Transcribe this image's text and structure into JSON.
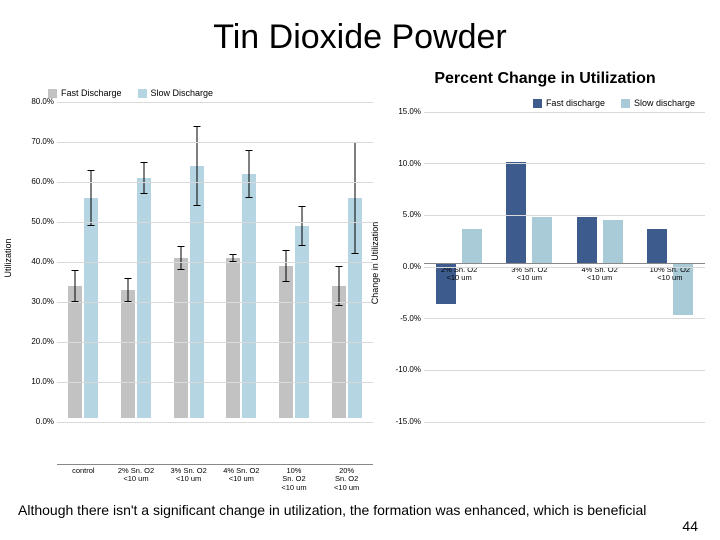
{
  "title": "Tin Dioxide Powder",
  "caption": "Although there isn't a significant change in utilization, the formation was enhanced, which is beneficial",
  "page_number": "44",
  "colors": {
    "fast": "#c2c2c2",
    "slow": "#b5d5e2",
    "fast2": "#3e5b8e",
    "slow2": "#a9cbd8"
  },
  "left_chart": {
    "legend": [
      {
        "label": "Fast Discharge",
        "color_key": "fast"
      },
      {
        "label": "Slow Discharge",
        "color_key": "slow"
      }
    ],
    "ylabel": "Utilization",
    "ymax": 80,
    "ymin": 0,
    "ystep": 10,
    "tick_suffix": "%",
    "categories": [
      "control",
      "2% Sn. O2\n<10 um",
      "3% Sn. O2\n<10 um",
      "4% Sn. O2\n<10 um",
      "10%\nSn. O2\n<10 um",
      "20%\nSn. O2\n<10 um"
    ],
    "data": [
      {
        "fast": {
          "v": 33,
          "e": 4
        },
        "slow": {
          "v": 55,
          "e": 7
        }
      },
      {
        "fast": {
          "v": 32,
          "e": 3
        },
        "slow": {
          "v": 60,
          "e": 4
        }
      },
      {
        "fast": {
          "v": 40,
          "e": 3
        },
        "slow": {
          "v": 63,
          "e": 10
        }
      },
      {
        "fast": {
          "v": 40,
          "e": 1
        },
        "slow": {
          "v": 61,
          "e": 6
        }
      },
      {
        "fast": {
          "v": 38,
          "e": 4
        },
        "slow": {
          "v": 48,
          "e": 5
        }
      },
      {
        "fast": {
          "v": 33,
          "e": 5
        },
        "slow": {
          "v": 55,
          "e": 14
        }
      }
    ]
  },
  "right_chart": {
    "title": "Percent Change in Utilization",
    "legend": [
      {
        "label": "Fast discharge",
        "color_key": "fast2"
      },
      {
        "label": "Slow discharge",
        "color_key": "slow2"
      }
    ],
    "ylabel": "Change in Utilization",
    "ymax": 15,
    "ymin": -15,
    "ystep": 5,
    "tick_suffix": "%",
    "categories": [
      "2% Sn. O2\n<10 um",
      "3% Sn. O2\n<10 um",
      "4% Sn. O2\n<10 um",
      "10% Sn. O2\n<10 um"
    ],
    "data": [
      {
        "fast2": -4,
        "slow2": 3.3
      },
      {
        "fast2": 9.8,
        "slow2": 4.5
      },
      {
        "fast2": 4.5,
        "slow2": 4.2
      },
      {
        "fast2": 3.3,
        "slow2": -5
      }
    ]
  }
}
